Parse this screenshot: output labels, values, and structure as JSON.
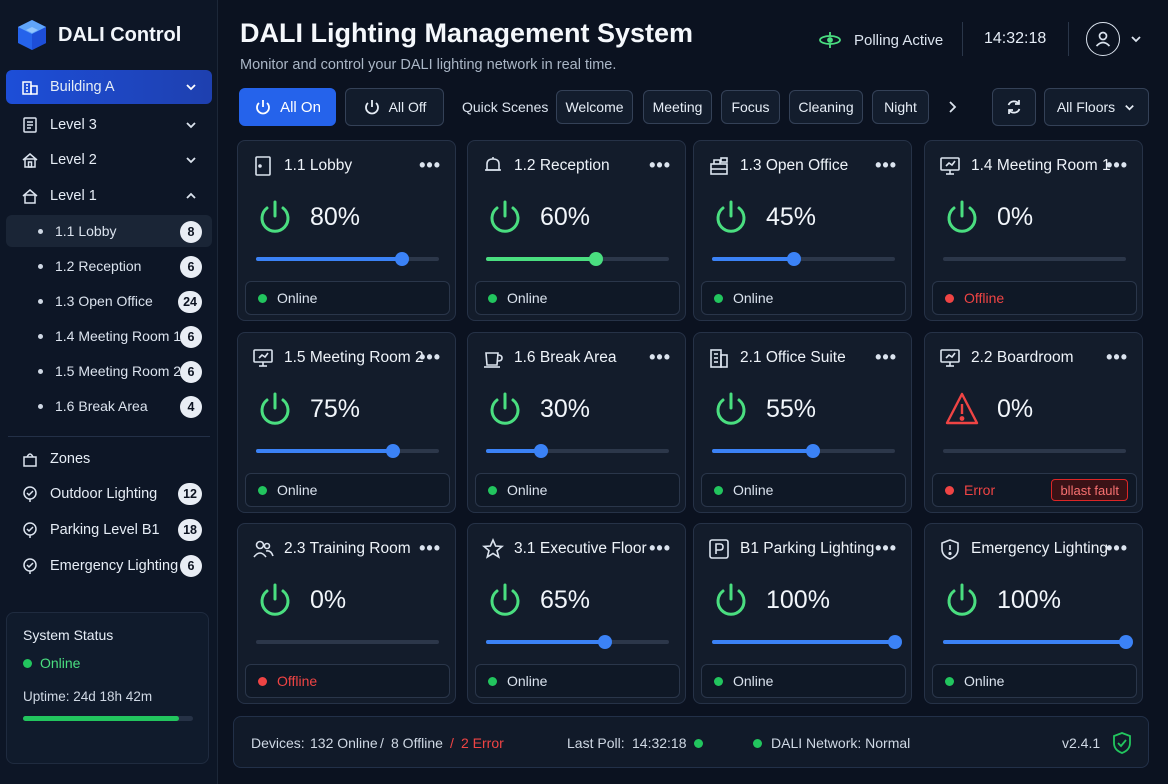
{
  "app": {
    "name": "DALI Control"
  },
  "header": {
    "title": "DALI Lighting Management System",
    "subtitle": "Monitor and control your DALI lighting network in real time.",
    "polling": "Polling Active",
    "clock": "14:32:18"
  },
  "sidebar": {
    "building": "Building A",
    "levels": [
      "Level 3",
      "Level 2",
      "Level 1"
    ],
    "level1_rooms": [
      {
        "label": "1.1  Lobby",
        "count": "8"
      },
      {
        "label": "1.2  Reception",
        "count": "6"
      },
      {
        "label": "1.3  Open Office",
        "count": "24"
      },
      {
        "label": "1.4  Meeting Room 1",
        "count": "6"
      },
      {
        "label": "1.5  Meeting Room 2",
        "count": "6"
      },
      {
        "label": "1.6  Break Area",
        "count": "4"
      }
    ],
    "zones_title": "Zones",
    "zones": [
      {
        "label": "Outdoor Lighting",
        "count": "12"
      },
      {
        "label": "Parking Level B1",
        "count": "18"
      },
      {
        "label": "Emergency Lighting",
        "count": "6"
      }
    ],
    "system_status": {
      "title": "System Status",
      "state": "Online",
      "uptime": "Uptime: 24d 18h 42m",
      "uptime_fraction": 0.92
    }
  },
  "toolbar": {
    "all_on": "All On",
    "all_off": "All Off",
    "quick_scenes_label": "Quick Scenes",
    "scenes": [
      "Welcome",
      "Meeting",
      "Focus",
      "Cleaning",
      "Night"
    ],
    "floor_filter": "All Floors"
  },
  "colors": {
    "accent": "#2563eb",
    "online": "#22c55e",
    "error": "#ef4444",
    "slider_blue": "#3b82f6",
    "slider_green": "#4ade80"
  },
  "cards": [
    {
      "name": "1.1 Lobby",
      "icon": "door-icon",
      "level": "80%",
      "value": 80,
      "status": "Online",
      "state": "online",
      "slider": "blue",
      "power": "power"
    },
    {
      "name": "1.2 Reception",
      "icon": "bell-icon",
      "level": "60%",
      "value": 60,
      "status": "Online",
      "state": "online",
      "slider": "green",
      "power": "power"
    },
    {
      "name": "1.3 Open Office",
      "icon": "desk-icon",
      "level": "45%",
      "value": 45,
      "status": "Online",
      "state": "online",
      "slider": "blue",
      "power": "power"
    },
    {
      "name": "1.4 Meeting Room 1",
      "icon": "monitor-icon",
      "level": "0%",
      "value": 0,
      "status": "Offline",
      "state": "offline",
      "slider": "blue",
      "power": "power"
    },
    {
      "name": "1.5 Meeting Room 2",
      "icon": "monitor-icon",
      "level": "75%",
      "value": 75,
      "status": "Online",
      "state": "online",
      "slider": "blue",
      "power": "power"
    },
    {
      "name": "1.6 Break Area",
      "icon": "cup-icon",
      "level": "30%",
      "value": 30,
      "status": "Online",
      "state": "online",
      "slider": "blue",
      "power": "power"
    },
    {
      "name": "2.1 Office Suite",
      "icon": "building-icon",
      "level": "55%",
      "value": 55,
      "status": "Online",
      "state": "online",
      "slider": "blue",
      "power": "power"
    },
    {
      "name": "2.2 Boardroom",
      "icon": "monitor-icon",
      "level": "0%",
      "value": 0,
      "status": "Error",
      "state": "error",
      "slider": "blue",
      "power": "warning",
      "fault": "bllast fault"
    },
    {
      "name": "2.3 Training Room",
      "icon": "users-icon",
      "level": "0%",
      "value": 0,
      "status": "Offline",
      "state": "offline",
      "slider": "blue",
      "power": "power"
    },
    {
      "name": "3.1 Executive Floor",
      "icon": "star-icon",
      "level": "65%",
      "value": 65,
      "status": "Online",
      "state": "online",
      "slider": "blue",
      "power": "power"
    },
    {
      "name": "B1 Parking Lighting",
      "icon": "parking-icon",
      "level": "100%",
      "value": 100,
      "status": "Online",
      "state": "online",
      "slider": "blue",
      "power": "power"
    },
    {
      "name": "Emergency Lighting",
      "icon": "shield-icon",
      "level": "100%",
      "value": 100,
      "status": "Online",
      "state": "online",
      "slider": "blue",
      "power": "power"
    }
  ],
  "footer": {
    "devices_label": "Devices:",
    "online": "132 Online",
    "sep": "/",
    "offline": "8 Offline",
    "error": "2 Error",
    "last_poll_label": "Last Poll:",
    "last_poll": "14:32:18",
    "network": "DALI Network: Normal",
    "version": "v2.4.1"
  }
}
